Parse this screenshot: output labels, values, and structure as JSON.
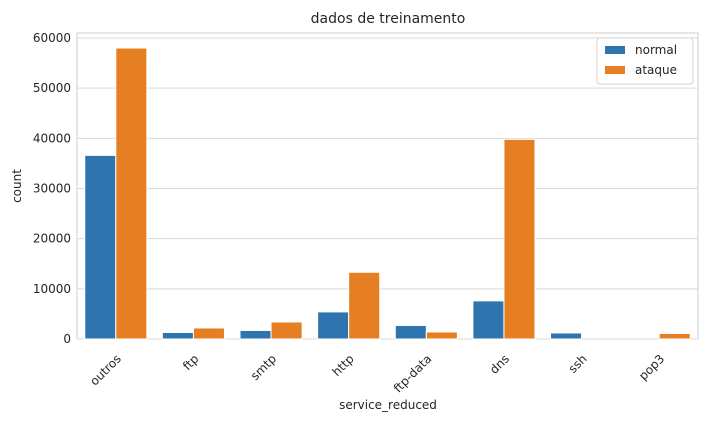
{
  "chart_data": {
    "type": "bar",
    "title": "dados de treinamento",
    "xlabel": "service_reduced",
    "ylabel": "count",
    "categories": [
      "outros",
      "ftp",
      "smtp",
      "http",
      "ftp-data",
      "dns",
      "ssh",
      "pop3"
    ],
    "series": [
      {
        "name": "normal",
        "color": "#2e75b0",
        "values": [
          36600,
          1300,
          1700,
          5400,
          2700,
          7600,
          1200,
          0
        ]
      },
      {
        "name": "ataque",
        "color": "#e57f22",
        "values": [
          58000,
          2200,
          3400,
          13300,
          1400,
          39800,
          0,
          1100
        ]
      }
    ],
    "ylim": [
      0,
      61000
    ],
    "yticks": [
      0,
      10000,
      20000,
      30000,
      40000,
      50000,
      60000
    ],
    "grid": true,
    "legend_position": "top-right"
  }
}
